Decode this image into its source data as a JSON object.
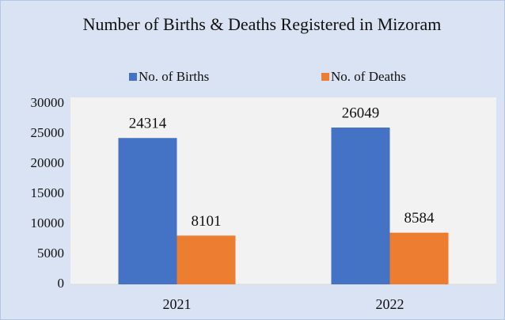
{
  "chart_data": {
    "type": "bar",
    "title": "Number of Births & Deaths Registered in Mizoram",
    "categories": [
      "2021",
      "2022"
    ],
    "series": [
      {
        "name": "No. of Births",
        "color": "#4472c4",
        "values": [
          24314,
          26049
        ]
      },
      {
        "name": "No. of Deaths",
        "color": "#ed7d31",
        "values": [
          8101,
          8584
        ]
      }
    ],
    "ylim": [
      0,
      30000
    ],
    "yticks": [
      0,
      5000,
      10000,
      15000,
      20000,
      25000,
      30000
    ],
    "legend": "top",
    "grid": false
  }
}
